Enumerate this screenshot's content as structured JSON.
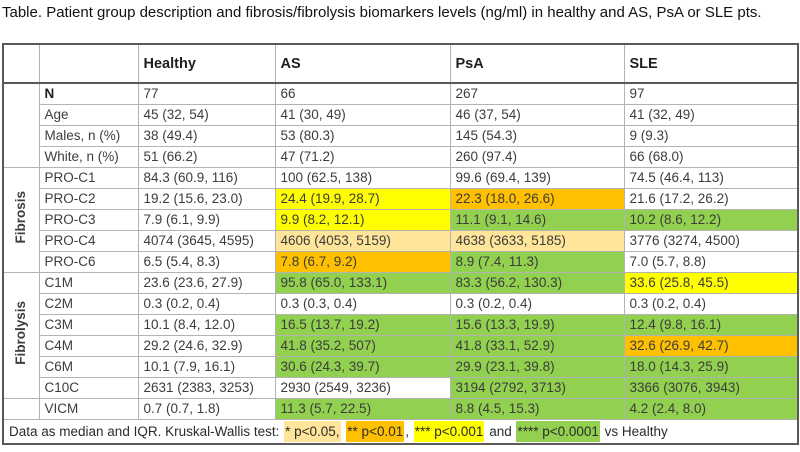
{
  "caption": "Table. Patient group description and fibrosis/fibrolysis biomarkers levels (ng/ml) in healthy and AS, PsA or SLE pts.",
  "colors": {
    "cream": "#FFE599",
    "orange": "#FFC000",
    "yellow": "#FFFF00",
    "green": "#92D050",
    "heavy_border": "#595959",
    "light_border": "#b3b3b3"
  },
  "table": {
    "columns": [
      "Healthy",
      "AS",
      "PsA",
      "SLE"
    ],
    "groups": [
      {
        "label": "",
        "rows": [
          {
            "label": "N",
            "bold": true,
            "cells": [
              {
                "v": "77"
              },
              {
                "v": "66"
              },
              {
                "v": "267"
              },
              {
                "v": "97"
              }
            ]
          },
          {
            "label": "Age",
            "cells": [
              {
                "v": "45 (32, 54)"
              },
              {
                "v": "41 (30, 49)"
              },
              {
                "v": "46 (37, 54)"
              },
              {
                "v": "41 (32, 49)"
              }
            ]
          },
          {
            "label": "Males, n (%)",
            "cells": [
              {
                "v": "38 (49.4)"
              },
              {
                "v": "53 (80.3)"
              },
              {
                "v": "145 (54.3)"
              },
              {
                "v": "9 (9.3)"
              }
            ]
          },
          {
            "label": "White, n (%)",
            "cells": [
              {
                "v": "51 (66.2)"
              },
              {
                "v": "47 (71.2)"
              },
              {
                "v": "260 (97.4)"
              },
              {
                "v": "66 (68.0)"
              }
            ]
          }
        ]
      },
      {
        "label": "Fibrosis",
        "rows": [
          {
            "label": "PRO-C1",
            "cells": [
              {
                "v": "84.3 (60.9, 116)"
              },
              {
                "v": "100 (62.5, 138)"
              },
              {
                "v": "99.6 (69.4, 139)"
              },
              {
                "v": "74.5 (46.4, 113)"
              }
            ]
          },
          {
            "label": "PRO-C2",
            "cells": [
              {
                "v": "19.2 (15.6, 23.0)"
              },
              {
                "v": "24.4 (19.9, 28.7)",
                "bg": "yellow"
              },
              {
                "v": "22.3 (18.0, 26.6)",
                "bg": "orange"
              },
              {
                "v": "21.6 (17.2, 26.2)"
              }
            ]
          },
          {
            "label": "PRO-C3",
            "cells": [
              {
                "v": "7.9 (6.1, 9.9)"
              },
              {
                "v": "9.9 (8.2, 12.1)",
                "bg": "yellow"
              },
              {
                "v": "11.1 (9.1, 14.6)",
                "bg": "green"
              },
              {
                "v": "10.2 (8.6, 12.2)",
                "bg": "green"
              }
            ]
          },
          {
            "label": "PRO-C4",
            "cells": [
              {
                "v": "4074 (3645, 4595)"
              },
              {
                "v": "4606 (4053, 5159)",
                "bg": "cream"
              },
              {
                "v": "4638 (3633, 5185)",
                "bg": "cream"
              },
              {
                "v": "3776 (3274, 4500)"
              }
            ]
          },
          {
            "label": "PRO-C6",
            "cells": [
              {
                "v": "6.5 (5.4, 8.3)"
              },
              {
                "v": "7.8 (6.7, 9.2)",
                "bg": "orange"
              },
              {
                "v": "8.9 (7.4, 11.3)",
                "bg": "green"
              },
              {
                "v": "7.0 (5.7, 8.8)"
              }
            ]
          }
        ]
      },
      {
        "label": "Fibrolysis",
        "rows": [
          {
            "label": "C1M",
            "cells": [
              {
                "v": "23.6 (23.6, 27.9)"
              },
              {
                "v": "95.8 (65.0, 133.1)",
                "bg": "green"
              },
              {
                "v": "83.3 (56.2, 130.3)",
                "bg": "green"
              },
              {
                "v": "33.6 (25.8, 45.5)",
                "bg": "yellow"
              }
            ]
          },
          {
            "label": "C2M",
            "cells": [
              {
                "v": "0.3 (0.2, 0.4)"
              },
              {
                "v": "0.3 (0.3, 0.4)"
              },
              {
                "v": "0.3 (0.2, 0.4)"
              },
              {
                "v": "0.3 (0.2, 0.4)"
              }
            ]
          },
          {
            "label": "C3M",
            "cells": [
              {
                "v": "10.1 (8.4, 12.0)"
              },
              {
                "v": "16.5 (13.7, 19.2)",
                "bg": "green"
              },
              {
                "v": "15.6 (13.3, 19.9)",
                "bg": "green"
              },
              {
                "v": "12.4 (9.8, 16.1)",
                "bg": "green"
              }
            ]
          },
          {
            "label": "C4M",
            "cells": [
              {
                "v": "29.2 (24.6, 32.9)"
              },
              {
                "v": "41.8 (35.2, 507)",
                "bg": "green"
              },
              {
                "v": "41.8 (33.1, 52.9)",
                "bg": "green"
              },
              {
                "v": "32.6 (26.9, 42.7)",
                "bg": "orange"
              }
            ]
          },
          {
            "label": "C6M",
            "cells": [
              {
                "v": "10.1 (7.9, 16.1)"
              },
              {
                "v": "30.6 (24.3, 39.7)",
                "bg": "green"
              },
              {
                "v": "29.9 (23.1, 39.8)",
                "bg": "green"
              },
              {
                "v": "18.0 (14.3, 25.9)",
                "bg": "green"
              }
            ]
          },
          {
            "label": "C10C",
            "cells": [
              {
                "v": "2631 (2383, 3253)"
              },
              {
                "v": "2930 (2549, 3236)"
              },
              {
                "v": "3194 (2792, 3713)",
                "bg": "green"
              },
              {
                "v": "3366 (3076, 3943)",
                "bg": "green"
              }
            ]
          }
        ]
      },
      {
        "label": "",
        "rows": [
          {
            "label": "VICM",
            "cells": [
              {
                "v": "0.7 (0.7, 1.8)"
              },
              {
                "v": "11.3 (5.7, 22.5)",
                "bg": "green"
              },
              {
                "v": "8.8 (4.5, 15.3)",
                "bg": "green"
              },
              {
                "v": "4.2 (2.4, 8.0)",
                "bg": "green"
              }
            ]
          }
        ]
      }
    ],
    "footnote": {
      "segments": [
        {
          "text": "Data as median and IQR. Kruskal-Wallis test: "
        },
        {
          "text": "* p<0.05,",
          "bg": "cream"
        },
        {
          "text": " "
        },
        {
          "text": "** p<0.01",
          "bg": "orange"
        },
        {
          "text": ", "
        },
        {
          "text": "*** p<0.001",
          "bg": "yellow"
        },
        {
          "text": " and "
        },
        {
          "text": "**** p<0.0001",
          "bg": "green"
        },
        {
          "text": " vs Healthy"
        }
      ]
    }
  }
}
